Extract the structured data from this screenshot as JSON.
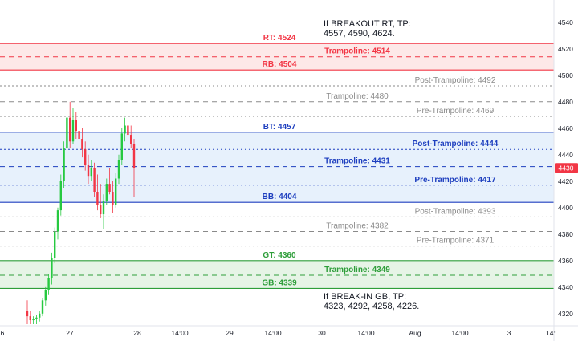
{
  "chart_data": {
    "type": "candlestick",
    "title": "",
    "ylim": [
      4312,
      4552
    ],
    "y_ticks": [
      "4320",
      "4340",
      "4360",
      "4380",
      "4400",
      "4420",
      "4440",
      "4460",
      "4480",
      "4500",
      "4520",
      "4540"
    ],
    "x_ticks": [
      "6",
      "27",
      "28",
      "14:00",
      "29",
      "14:00",
      "30",
      "14:00",
      "Aug",
      "14:00",
      "3",
      "14:"
    ],
    "current_price": "4430",
    "current_price_value": 4430,
    "colors": {
      "up": "#26c940",
      "down": "#f23645",
      "red_zone": "#fde8e8",
      "blue_zone": "#e7f1fc",
      "green_zone": "#e6f4e6",
      "red_line": "#f23645",
      "blue_line": "#1e3fbf",
      "green_line": "#2e9e3a",
      "gray_line": "#8a8a8a",
      "badge": "#f23645"
    },
    "levels": [
      {
        "label": "RT: 4524",
        "value": 4524,
        "style": "solid",
        "color": "red",
        "label_pos": "left",
        "bold": true
      },
      {
        "label": "Trampoline: 4514",
        "value": 4514,
        "style": "dashed",
        "color": "red",
        "label_pos": "mid",
        "bold": true
      },
      {
        "label": "RB: 4504",
        "value": 4504,
        "style": "solid",
        "color": "red",
        "label_pos": "left",
        "bold": true
      },
      {
        "label": "Post-Trampoline: 4492",
        "value": 4492,
        "style": "dotted",
        "color": "gray",
        "label_pos": "right",
        "bold": false
      },
      {
        "label": "Trampoline: 4480",
        "value": 4480,
        "style": "dashed",
        "color": "gray",
        "label_pos": "mid",
        "bold": false
      },
      {
        "label": "Pre-Trampoline: 4469",
        "value": 4469,
        "style": "dotted",
        "color": "gray",
        "label_pos": "right",
        "bold": false
      },
      {
        "label": "BT: 4457",
        "value": 4457,
        "style": "solid",
        "color": "blue",
        "label_pos": "left",
        "bold": true
      },
      {
        "label": "Post-Trampoline: 4444",
        "value": 4444,
        "style": "dotted",
        "color": "blue",
        "label_pos": "right",
        "bold": true
      },
      {
        "label": "Trampoline: 4431",
        "value": 4431,
        "style": "dashed",
        "color": "blue",
        "label_pos": "mid",
        "bold": true
      },
      {
        "label": "Pre-Trampoline: 4417",
        "value": 4417,
        "style": "dotted",
        "color": "blue",
        "label_pos": "right",
        "bold": true
      },
      {
        "label": "BB: 4404",
        "value": 4404,
        "style": "solid",
        "color": "blue",
        "label_pos": "left",
        "bold": true
      },
      {
        "label": "Post-Trampoline: 4393",
        "value": 4393,
        "style": "dotted",
        "color": "gray",
        "label_pos": "right",
        "bold": false
      },
      {
        "label": "Trampoline: 4382",
        "value": 4382,
        "style": "dashed",
        "color": "gray",
        "label_pos": "mid",
        "bold": false
      },
      {
        "label": "Pre-Trampoline: 4371",
        "value": 4371,
        "style": "dotted",
        "color": "gray",
        "label_pos": "right",
        "bold": false
      },
      {
        "label": "GT: 4360",
        "value": 4360,
        "style": "solid",
        "color": "green",
        "label_pos": "left",
        "bold": true
      },
      {
        "label": "Trampoline: 4349",
        "value": 4349,
        "style": "dashed",
        "color": "green",
        "label_pos": "mid",
        "bold": true
      },
      {
        "label": "GB: 4339",
        "value": 4339,
        "style": "solid",
        "color": "green",
        "label_pos": "left",
        "bold": true
      }
    ],
    "zones": [
      {
        "top": 4524,
        "bottom": 4504,
        "color": "red"
      },
      {
        "top": 4457,
        "bottom": 4404,
        "color": "blue"
      },
      {
        "top": 4360,
        "bottom": 4339,
        "color": "green"
      }
    ],
    "annotations": [
      {
        "lines": [
          "If BREAKOUT RT, TP:",
          "4557, 4590, 4624."
        ],
        "anchor_value": 4543
      },
      {
        "lines": [
          "If BREAK-IN GB, TP:",
          "4323, 4292, 4258, 4226."
        ],
        "anchor_value": 4337
      }
    ],
    "candles": [
      {
        "o": 4322,
        "h": 4330,
        "l": 4312,
        "c": 4318
      },
      {
        "o": 4318,
        "h": 4322,
        "l": 4312,
        "c": 4315
      },
      {
        "o": 4315,
        "h": 4318,
        "l": 4312,
        "c": 4316
      },
      {
        "o": 4316,
        "h": 4319,
        "l": 4312,
        "c": 4317
      },
      {
        "o": 4317,
        "h": 4322,
        "l": 4314,
        "c": 4320
      },
      {
        "o": 4320,
        "h": 4332,
        "l": 4318,
        "c": 4330
      },
      {
        "o": 4330,
        "h": 4340,
        "l": 4326,
        "c": 4338
      },
      {
        "o": 4338,
        "h": 4350,
        "l": 4334,
        "c": 4347
      },
      {
        "o": 4347,
        "h": 4366,
        "l": 4342,
        "c": 4362
      },
      {
        "o": 4362,
        "h": 4385,
        "l": 4358,
        "c": 4382
      },
      {
        "o": 4382,
        "h": 4400,
        "l": 4376,
        "c": 4398
      },
      {
        "o": 4398,
        "h": 4425,
        "l": 4394,
        "c": 4420
      },
      {
        "o": 4420,
        "h": 4450,
        "l": 4415,
        "c": 4445
      },
      {
        "o": 4445,
        "h": 4478,
        "l": 4440,
        "c": 4468
      },
      {
        "o": 4468,
        "h": 4480,
        "l": 4445,
        "c": 4450
      },
      {
        "o": 4450,
        "h": 4475,
        "l": 4448,
        "c": 4466
      },
      {
        "o": 4466,
        "h": 4472,
        "l": 4452,
        "c": 4458
      },
      {
        "o": 4458,
        "h": 4465,
        "l": 4445,
        "c": 4452
      },
      {
        "o": 4452,
        "h": 4460,
        "l": 4438,
        "c": 4444
      },
      {
        "o": 4444,
        "h": 4450,
        "l": 4428,
        "c": 4432
      },
      {
        "o": 4432,
        "h": 4440,
        "l": 4418,
        "c": 4424
      },
      {
        "o": 4424,
        "h": 4436,
        "l": 4420,
        "c": 4430
      },
      {
        "o": 4430,
        "h": 4434,
        "l": 4408,
        "c": 4412
      },
      {
        "o": 4412,
        "h": 4425,
        "l": 4398,
        "c": 4402
      },
      {
        "o": 4402,
        "h": 4418,
        "l": 4392,
        "c": 4395
      },
      {
        "o": 4395,
        "h": 4410,
        "l": 4384,
        "c": 4405
      },
      {
        "o": 4405,
        "h": 4422,
        "l": 4402,
        "c": 4418
      },
      {
        "o": 4418,
        "h": 4430,
        "l": 4410,
        "c": 4412
      },
      {
        "o": 4412,
        "h": 4420,
        "l": 4396,
        "c": 4402
      },
      {
        "o": 4402,
        "h": 4426,
        "l": 4400,
        "c": 4422
      },
      {
        "o": 4422,
        "h": 4440,
        "l": 4418,
        "c": 4436
      },
      {
        "o": 4436,
        "h": 4460,
        "l": 4432,
        "c": 4456
      },
      {
        "o": 4456,
        "h": 4468,
        "l": 4450,
        "c": 4462
      },
      {
        "o": 4462,
        "h": 4466,
        "l": 4450,
        "c": 4455
      },
      {
        "o": 4455,
        "h": 4462,
        "l": 4445,
        "c": 4448
      },
      {
        "o": 4448,
        "h": 4452,
        "l": 4408,
        "c": 4430
      }
    ]
  }
}
